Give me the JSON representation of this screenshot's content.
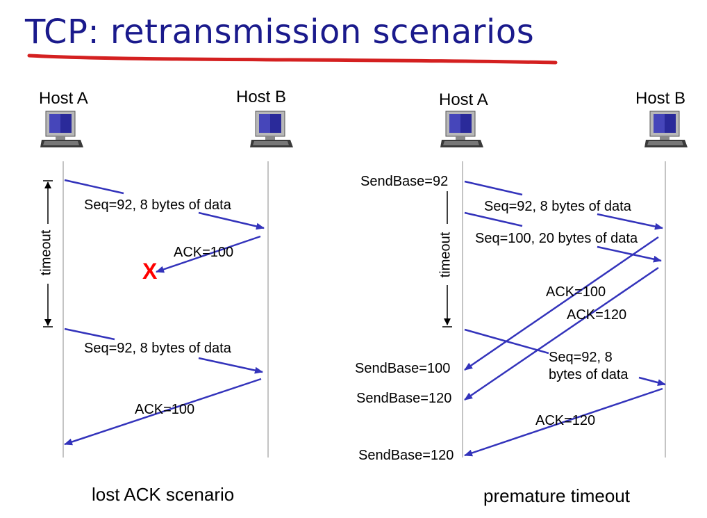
{
  "title": "TCP: retransmission scenarios",
  "colors": {
    "title": "#1a1a8c",
    "underline": "#d42020",
    "arrow": "#3333bb",
    "lost_mark": "#ff0000"
  },
  "left_scenario": {
    "host_a": "Host A",
    "host_b": "Host B",
    "timeout_label": "timeout",
    "msg1": "Seq=92, 8 bytes of data",
    "ack1": "ACK=100",
    "lost_mark": "X",
    "msg2": "Seq=92, 8 bytes of data",
    "ack2": "ACK=100",
    "caption": "lost ACK scenario"
  },
  "right_scenario": {
    "host_a": "Host A",
    "host_b": "Host B",
    "timeout_label": "timeout",
    "sendbase_1": "SendBase=92",
    "msg1": "Seq=92, 8 bytes of data",
    "msg2": "Seq=100, 20 bytes of data",
    "ack1": "ACK=100",
    "ack2": "ACK=120",
    "msg3_line1": "Seq=92,  8",
    "msg3_line2": "bytes of data",
    "sendbase_2": "SendBase=100",
    "sendbase_3": "SendBase=120",
    "ack3": "ACK=120",
    "sendbase_4": "SendBase=120",
    "caption": "premature timeout"
  }
}
